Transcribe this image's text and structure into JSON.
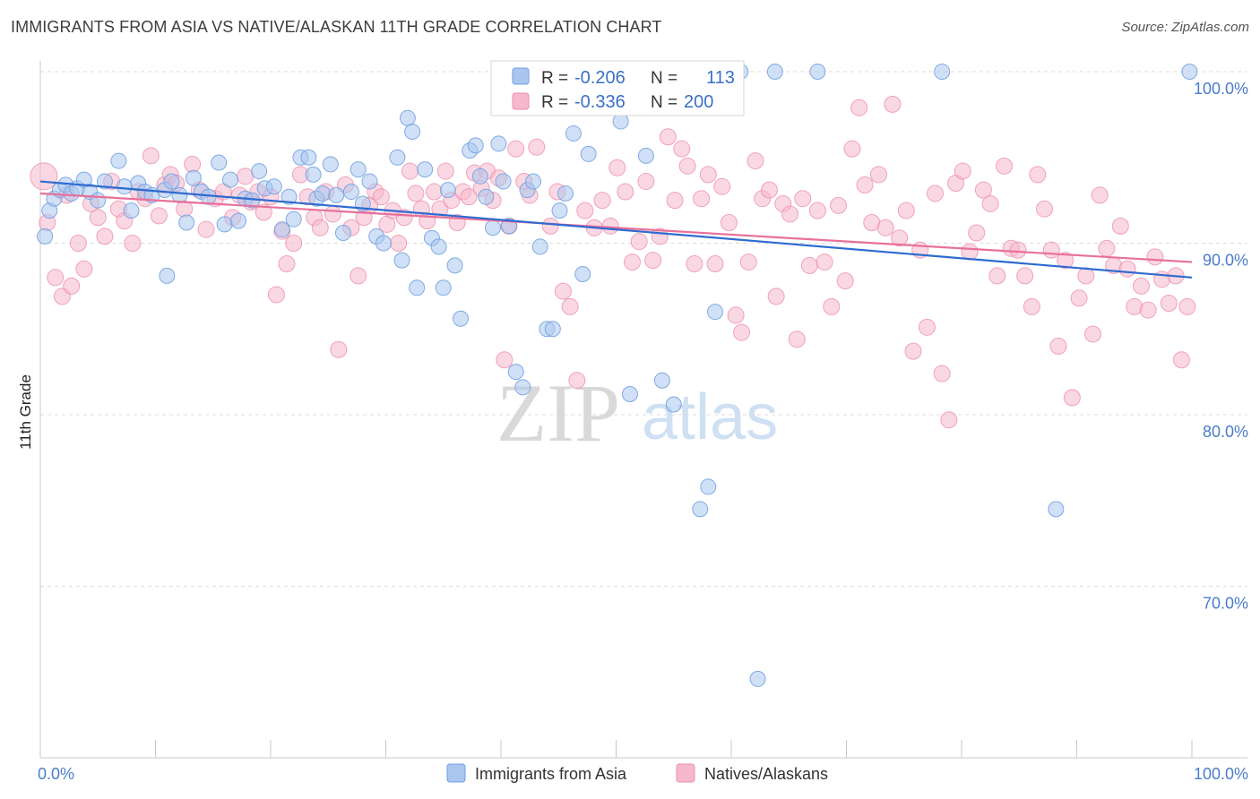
{
  "header": {
    "title": "IMMIGRANTS FROM ASIA VS NATIVE/ALASKAN 11TH GRADE CORRELATION CHART",
    "source": "Source: ZipAtlas.com"
  },
  "watermark": {
    "zip": "ZIP",
    "atlas": "atlas"
  },
  "legend_box": {
    "r_label": "R =",
    "n_label": "N =",
    "rows": [
      {
        "r": "-0.206",
        "n": "113",
        "color": "#a9c6ef"
      },
      {
        "r": "-0.336",
        "n": "200",
        "color": "#f6b8cc"
      }
    ]
  },
  "bottom_legend": [
    {
      "label": "Immigrants from Asia",
      "color": "#a9c6ef"
    },
    {
      "label": "Natives/Alaskans",
      "color": "#f6b8cc"
    }
  ],
  "colors": {
    "blue_fill": "#a9c6ef",
    "blue_stroke": "#6f9fe0",
    "blue_line": "#2e6bd0",
    "pink_fill": "#f6b8cc",
    "pink_stroke": "#ec8fad",
    "pink_line": "#e8709a",
    "grid": "#dddddd",
    "tick_text": "#4a7cc9"
  },
  "chart_data": {
    "type": "scatter",
    "title": "IMMIGRANTS FROM ASIA VS NATIVE/ALASKAN 11TH GRADE CORRELATION CHART",
    "xlabel": "",
    "ylabel": "11th Grade",
    "xlim": [
      0,
      100
    ],
    "ylim": [
      62,
      101
    ],
    "x_tick_labels": [
      "0.0%",
      "100.0%"
    ],
    "y_ticks": [
      70,
      80,
      90,
      100
    ],
    "y_tick_labels": [
      "70.0%",
      "80.0%",
      "90.0%",
      "100.0%"
    ],
    "grid": "horizontal dashed",
    "legend_position": "top-center",
    "series": [
      {
        "name": "Immigrants from Asia",
        "r": -0.206,
        "n": 113,
        "trend": [
          [
            0,
            93.6
          ],
          [
            100,
            88.0
          ]
        ],
        "points": [
          [
            0.4,
            90.4
          ],
          [
            0.8,
            91.9
          ],
          [
            1.2,
            92.6
          ],
          [
            1.7,
            93.1
          ],
          [
            2.2,
            93.4
          ],
          [
            2.7,
            92.9
          ],
          [
            3.2,
            93.2
          ],
          [
            3.8,
            93.7
          ],
          [
            4.3,
            93.0
          ],
          [
            5.0,
            92.5
          ],
          [
            5.6,
            93.6
          ],
          [
            6.8,
            94.8
          ],
          [
            7.3,
            93.3
          ],
          [
            7.9,
            91.9
          ],
          [
            8.5,
            93.5
          ],
          [
            9.1,
            93.0
          ],
          [
            9.7,
            92.8
          ],
          [
            10.8,
            93.1
          ],
          [
            11.0,
            88.1
          ],
          [
            11.4,
            93.6
          ],
          [
            12.1,
            92.8
          ],
          [
            12.7,
            91.2
          ],
          [
            13.3,
            93.8
          ],
          [
            14.0,
            93.0
          ],
          [
            14.6,
            92.7
          ],
          [
            15.5,
            94.7
          ],
          [
            16.0,
            91.1
          ],
          [
            16.5,
            93.7
          ],
          [
            17.2,
            91.3
          ],
          [
            17.8,
            92.6
          ],
          [
            18.4,
            92.5
          ],
          [
            19.0,
            94.2
          ],
          [
            19.5,
            93.2
          ],
          [
            20.3,
            93.3
          ],
          [
            21.0,
            90.8
          ],
          [
            21.6,
            92.7
          ],
          [
            22.0,
            91.4
          ],
          [
            22.6,
            95.0
          ],
          [
            23.3,
            95.0
          ],
          [
            23.7,
            94.0
          ],
          [
            24.0,
            92.6
          ],
          [
            24.5,
            92.9
          ],
          [
            25.2,
            94.6
          ],
          [
            25.7,
            92.8
          ],
          [
            26.3,
            90.6
          ],
          [
            27.0,
            93.0
          ],
          [
            27.6,
            94.3
          ],
          [
            28.0,
            92.3
          ],
          [
            28.6,
            93.6
          ],
          [
            29.2,
            90.4
          ],
          [
            29.8,
            90.0
          ],
          [
            31.0,
            95.0
          ],
          [
            31.4,
            89.0
          ],
          [
            31.9,
            97.3
          ],
          [
            32.3,
            96.5
          ],
          [
            32.7,
            87.4
          ],
          [
            33.4,
            94.3
          ],
          [
            34.0,
            90.3
          ],
          [
            34.6,
            89.8
          ],
          [
            35.0,
            87.4
          ],
          [
            35.4,
            93.1
          ],
          [
            36.0,
            88.7
          ],
          [
            36.5,
            85.6
          ],
          [
            37.3,
            95.4
          ],
          [
            37.8,
            95.7
          ],
          [
            38.2,
            93.9
          ],
          [
            38.7,
            92.7
          ],
          [
            39.3,
            90.9
          ],
          [
            39.8,
            95.8
          ],
          [
            40.2,
            93.6
          ],
          [
            40.7,
            91.0
          ],
          [
            41.3,
            82.5
          ],
          [
            41.9,
            81.6
          ],
          [
            42.3,
            93.1
          ],
          [
            42.8,
            93.6
          ],
          [
            43.4,
            89.8
          ],
          [
            44.0,
            85.0
          ],
          [
            44.5,
            85.0
          ],
          [
            45.1,
            91.9
          ],
          [
            45.6,
            92.9
          ],
          [
            46.3,
            96.4
          ],
          [
            47.1,
            88.2
          ],
          [
            47.6,
            95.2
          ],
          [
            48.5,
            99.1
          ],
          [
            50.4,
            97.1
          ],
          [
            51.2,
            81.2
          ],
          [
            51.9,
            98.0
          ],
          [
            52.6,
            95.1
          ],
          [
            53.1,
            100.0
          ],
          [
            54.0,
            82.0
          ],
          [
            55.0,
            80.6
          ],
          [
            57.3,
            74.5
          ],
          [
            58.0,
            75.8
          ],
          [
            58.6,
            86.0
          ],
          [
            60.8,
            100.0
          ],
          [
            62.3,
            64.6
          ],
          [
            63.8,
            100.0
          ],
          [
            67.5,
            100.0
          ],
          [
            78.3,
            100.0
          ],
          [
            88.2,
            74.5
          ],
          [
            99.8,
            100.0
          ]
        ]
      },
      {
        "name": "Natives/Alaskans",
        "r": -0.336,
        "n": 200,
        "trend": [
          [
            0,
            92.9
          ],
          [
            100,
            88.9
          ]
        ],
        "points": [
          [
            0.3,
            93.9
          ],
          [
            0.6,
            91.2
          ],
          [
            1.3,
            88.0
          ],
          [
            1.9,
            86.9
          ],
          [
            2.3,
            92.8
          ],
          [
            2.7,
            87.5
          ],
          [
            3.3,
            90.0
          ],
          [
            3.8,
            88.5
          ],
          [
            4.4,
            92.3
          ],
          [
            5.0,
            91.5
          ],
          [
            5.6,
            90.4
          ],
          [
            6.2,
            93.6
          ],
          [
            6.8,
            92.0
          ],
          [
            7.3,
            91.3
          ],
          [
            8.0,
            90.0
          ],
          [
            8.5,
            93.0
          ],
          [
            9.1,
            92.6
          ],
          [
            9.6,
            95.1
          ],
          [
            10.3,
            91.6
          ],
          [
            10.8,
            93.4
          ],
          [
            11.3,
            94.0
          ],
          [
            11.8,
            93.5
          ],
          [
            12.5,
            92.0
          ],
          [
            13.2,
            94.6
          ],
          [
            13.8,
            93.1
          ],
          [
            14.4,
            90.8
          ],
          [
            15.2,
            92.6
          ],
          [
            15.9,
            93.0
          ],
          [
            16.7,
            91.5
          ],
          [
            17.3,
            92.8
          ],
          [
            17.8,
            93.9
          ],
          [
            18.3,
            92.4
          ],
          [
            18.9,
            93.0
          ],
          [
            19.4,
            91.8
          ],
          [
            20.0,
            92.7
          ],
          [
            20.5,
            87.0
          ],
          [
            21.0,
            90.7
          ],
          [
            21.4,
            88.8
          ],
          [
            22.0,
            90.0
          ],
          [
            22.6,
            94.0
          ],
          [
            23.2,
            92.7
          ],
          [
            23.8,
            91.5
          ],
          [
            24.3,
            90.9
          ],
          [
            24.8,
            93.0
          ],
          [
            25.4,
            91.7
          ],
          [
            25.9,
            83.8
          ],
          [
            26.5,
            93.4
          ],
          [
            27.0,
            90.9
          ],
          [
            27.6,
            88.1
          ],
          [
            28.1,
            91.5
          ],
          [
            28.6,
            92.2
          ],
          [
            29.1,
            93.0
          ],
          [
            29.6,
            92.7
          ],
          [
            30.1,
            91.1
          ],
          [
            30.6,
            91.9
          ],
          [
            31.1,
            90.0
          ],
          [
            31.6,
            91.5
          ],
          [
            32.1,
            94.2
          ],
          [
            32.6,
            92.9
          ],
          [
            33.1,
            92.0
          ],
          [
            33.6,
            91.3
          ],
          [
            34.2,
            93.0
          ],
          [
            34.7,
            92.0
          ],
          [
            35.2,
            94.2
          ],
          [
            35.7,
            92.5
          ],
          [
            36.2,
            91.2
          ],
          [
            36.7,
            93.0
          ],
          [
            37.2,
            92.7
          ],
          [
            37.7,
            94.1
          ],
          [
            38.3,
            93.2
          ],
          [
            38.8,
            94.2
          ],
          [
            39.3,
            92.5
          ],
          [
            39.8,
            93.8
          ],
          [
            40.3,
            83.2
          ],
          [
            40.7,
            91.0
          ],
          [
            41.3,
            95.5
          ],
          [
            42.0,
            93.6
          ],
          [
            42.5,
            92.8
          ],
          [
            43.1,
            95.6
          ],
          [
            44.3,
            91.0
          ],
          [
            44.9,
            93.0
          ],
          [
            45.4,
            87.2
          ],
          [
            46.0,
            86.3
          ],
          [
            46.6,
            82.0
          ],
          [
            47.3,
            91.9
          ],
          [
            48.1,
            90.9
          ],
          [
            48.8,
            92.5
          ],
          [
            49.5,
            91.0
          ],
          [
            50.1,
            94.4
          ],
          [
            50.8,
            93.0
          ],
          [
            51.4,
            88.9
          ],
          [
            52.0,
            90.1
          ],
          [
            52.6,
            93.6
          ],
          [
            53.2,
            89.0
          ],
          [
            53.8,
            90.4
          ],
          [
            54.5,
            96.2
          ],
          [
            55.1,
            92.5
          ],
          [
            55.7,
            95.5
          ],
          [
            56.2,
            94.5
          ],
          [
            56.8,
            88.8
          ],
          [
            57.4,
            92.6
          ],
          [
            58.0,
            94.0
          ],
          [
            58.6,
            88.8
          ],
          [
            59.2,
            93.3
          ],
          [
            59.8,
            91.2
          ],
          [
            60.4,
            85.8
          ],
          [
            60.9,
            84.8
          ],
          [
            61.5,
            88.9
          ],
          [
            62.1,
            94.8
          ],
          [
            62.7,
            92.6
          ],
          [
            63.3,
            93.1
          ],
          [
            63.9,
            86.9
          ],
          [
            64.5,
            92.3
          ],
          [
            65.1,
            91.7
          ],
          [
            65.7,
            84.4
          ],
          [
            66.2,
            92.6
          ],
          [
            66.8,
            88.7
          ],
          [
            67.5,
            91.9
          ],
          [
            68.1,
            88.9
          ],
          [
            68.7,
            86.3
          ],
          [
            69.3,
            92.2
          ],
          [
            69.9,
            87.8
          ],
          [
            70.5,
            95.5
          ],
          [
            71.1,
            97.9
          ],
          [
            71.6,
            93.4
          ],
          [
            72.2,
            91.2
          ],
          [
            72.8,
            94.0
          ],
          [
            73.4,
            90.9
          ],
          [
            74.0,
            98.1
          ],
          [
            74.6,
            90.3
          ],
          [
            75.2,
            91.9
          ],
          [
            75.8,
            83.7
          ],
          [
            76.4,
            89.6
          ],
          [
            77.0,
            85.1
          ],
          [
            77.7,
            92.9
          ],
          [
            78.3,
            82.4
          ],
          [
            78.9,
            79.7
          ],
          [
            79.5,
            93.5
          ],
          [
            80.1,
            94.2
          ],
          [
            80.7,
            89.5
          ],
          [
            81.3,
            90.6
          ],
          [
            81.9,
            93.1
          ],
          [
            82.5,
            92.3
          ],
          [
            83.1,
            88.1
          ],
          [
            83.7,
            94.5
          ],
          [
            84.3,
            89.7
          ],
          [
            84.9,
            89.6
          ],
          [
            85.5,
            88.1
          ],
          [
            86.1,
            86.3
          ],
          [
            86.6,
            94.0
          ],
          [
            87.2,
            92.0
          ],
          [
            87.8,
            89.6
          ],
          [
            88.4,
            84.0
          ],
          [
            89.0,
            89.0
          ],
          [
            89.6,
            81.0
          ],
          [
            90.2,
            86.8
          ],
          [
            90.8,
            88.1
          ],
          [
            91.4,
            84.7
          ],
          [
            92.0,
            92.8
          ],
          [
            92.6,
            89.7
          ],
          [
            93.2,
            88.7
          ],
          [
            93.8,
            91.0
          ],
          [
            94.4,
            88.5
          ],
          [
            95.0,
            86.3
          ],
          [
            95.6,
            87.5
          ],
          [
            96.2,
            86.1
          ],
          [
            96.8,
            89.2
          ],
          [
            97.4,
            87.9
          ],
          [
            98.0,
            86.5
          ],
          [
            98.6,
            88.1
          ],
          [
            99.1,
            83.2
          ],
          [
            99.6,
            86.3
          ]
        ]
      }
    ]
  }
}
